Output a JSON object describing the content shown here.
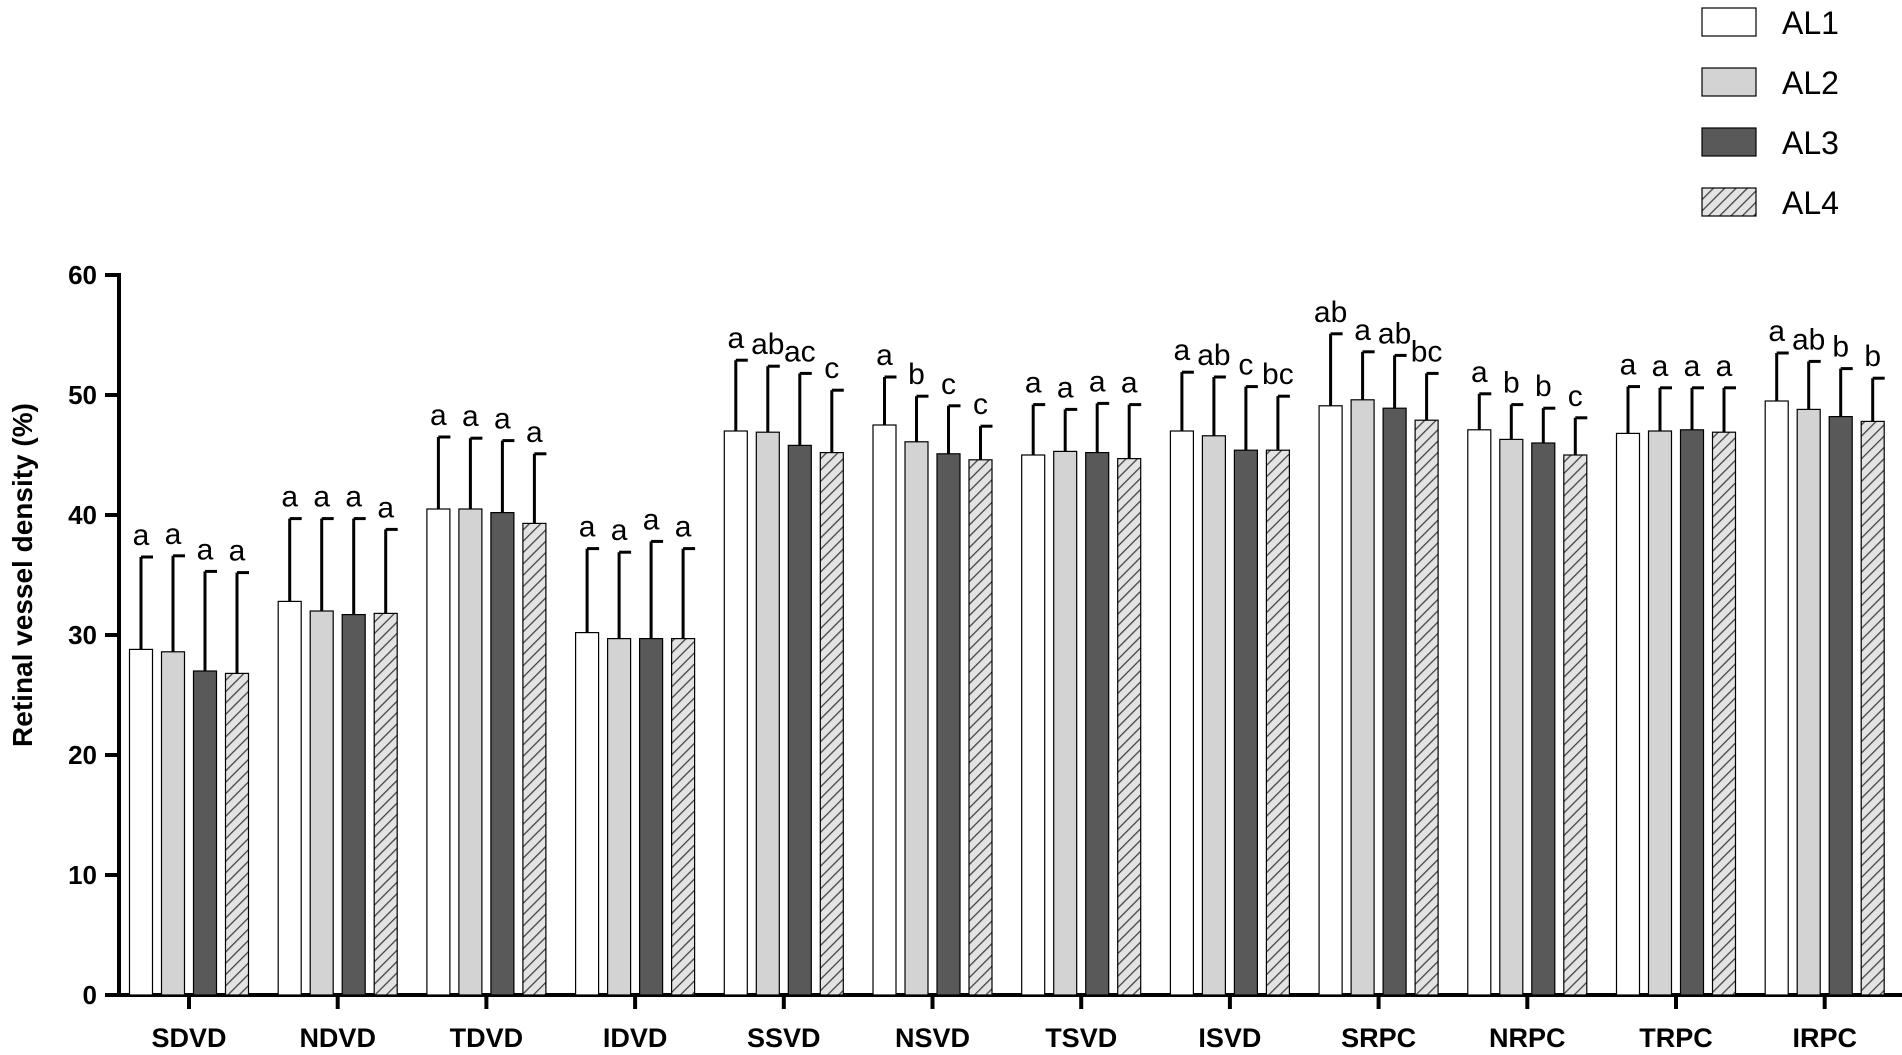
{
  "chart_data": {
    "type": "bar",
    "title": "",
    "xlabel": "",
    "ylabel": "Retinal vessel density (%)",
    "ylim": [
      0,
      60
    ],
    "yticks": [
      0,
      10,
      20,
      30,
      40,
      50,
      60
    ],
    "grid": false,
    "legend_position": "top-right",
    "categories": [
      "SDVD",
      "NDVD",
      "TDVD",
      "IDVD",
      "SSVD",
      "NSVD",
      "TSVD",
      "ISVD",
      "SRPC",
      "NRPC",
      "TRPC",
      "IRPC"
    ],
    "series": [
      {
        "name": "AL1",
        "fill": "#ffffff",
        "pattern": "none",
        "values": [
          28.8,
          32.8,
          40.5,
          30.2,
          47.0,
          47.5,
          45.0,
          47.0,
          49.1,
          47.1,
          46.8,
          49.5
        ],
        "errors": [
          7.7,
          6.9,
          6.0,
          7.0,
          5.9,
          4.0,
          4.2,
          4.9,
          6.0,
          3.0,
          3.9,
          4.0
        ],
        "letters": [
          "a",
          "a",
          "a",
          "a",
          "a",
          "a",
          "a",
          "a",
          "ab",
          "a",
          "a",
          "a"
        ]
      },
      {
        "name": "AL2",
        "fill": "#d3d3d3",
        "pattern": "none",
        "values": [
          28.6,
          32.0,
          40.5,
          29.7,
          46.9,
          46.1,
          45.3,
          46.6,
          49.6,
          46.3,
          47.0,
          48.8
        ],
        "errors": [
          8.0,
          7.7,
          5.9,
          7.2,
          5.5,
          3.8,
          3.5,
          4.9,
          4.0,
          2.9,
          3.6,
          4.0
        ],
        "letters": [
          "a",
          "a",
          "a",
          "a",
          "ab",
          "b",
          "a",
          "ab",
          "a",
          "b",
          "a",
          "ab"
        ]
      },
      {
        "name": "AL3",
        "fill": "#595959",
        "pattern": "none",
        "values": [
          27.0,
          31.7,
          40.2,
          29.7,
          45.8,
          45.1,
          45.2,
          45.4,
          48.9,
          46.0,
          47.1,
          48.2
        ],
        "errors": [
          8.3,
          8.0,
          6.0,
          8.1,
          6.0,
          4.0,
          4.1,
          5.3,
          4.4,
          2.9,
          3.5,
          4.0
        ],
        "letters": [
          "a",
          "a",
          "a",
          "a",
          "ac",
          "c",
          "a",
          "c",
          "ab",
          "b",
          "a",
          "b"
        ]
      },
      {
        "name": "AL4",
        "fill": "#e3e3e3",
        "pattern": "hatch",
        "values": [
          26.8,
          31.8,
          39.3,
          29.7,
          45.2,
          44.6,
          44.7,
          45.4,
          47.9,
          45.0,
          46.9,
          47.8
        ],
        "errors": [
          8.4,
          7.0,
          5.8,
          7.5,
          5.2,
          2.8,
          4.5,
          4.5,
          3.9,
          3.1,
          3.7,
          3.6
        ],
        "letters": [
          "a",
          "a",
          "a",
          "a",
          "c",
          "c",
          "a",
          "bc",
          "bc",
          "c",
          "a",
          "b"
        ]
      }
    ]
  }
}
